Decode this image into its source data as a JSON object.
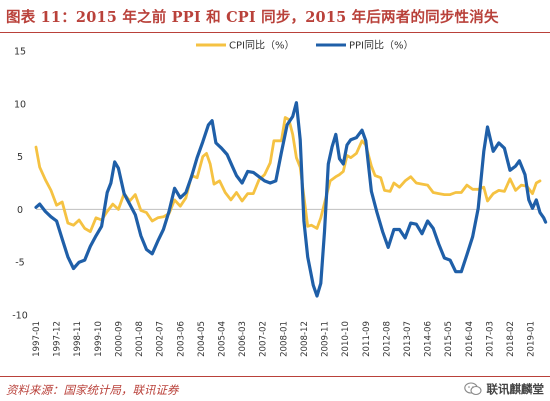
{
  "title": "图表 11：2015 年之前 PPI 和 CPI 同步，2015 年后两者的同步性消失",
  "source": "资料来源：国家统计局，联讯证券",
  "watermark": {
    "text": "联讯麒麟堂",
    "icon": "wechat-icon"
  },
  "chart_data": {
    "type": "line",
    "ylim": [
      -10,
      15
    ],
    "yticks": [
      -10,
      -5,
      0,
      5,
      10,
      15
    ],
    "grid": false,
    "legend_position": "top-center",
    "x_range": [
      "1997-01",
      "2019-06"
    ],
    "x_tick_labels": [
      "1997-01",
      "1997-12",
      "1998-11",
      "1999-10",
      "2000-09",
      "2001-08",
      "2002-07",
      "2003-06",
      "2004-05",
      "2005-04",
      "2006-03",
      "2007-02",
      "2008-01",
      "2008-12",
      "2009-11",
      "2010-10",
      "2011-09",
      "2012-08",
      "2013-07",
      "2014-06",
      "2015-05",
      "2016-04",
      "2017-03",
      "2018-02",
      "2019-01"
    ],
    "series": [
      {
        "name": "CPI同比（%）",
        "color": "#f5c242",
        "points": [
          [
            "1997-01",
            5.9
          ],
          [
            "1997-03",
            4.0
          ],
          [
            "1997-06",
            2.8
          ],
          [
            "1997-09",
            1.8
          ],
          [
            "1997-12",
            0.4
          ],
          [
            "1998-03",
            0.7
          ],
          [
            "1998-06",
            -1.3
          ],
          [
            "1998-09",
            -1.5
          ],
          [
            "1998-12",
            -1.0
          ],
          [
            "1999-03",
            -1.8
          ],
          [
            "1999-06",
            -2.1
          ],
          [
            "1999-09",
            -0.8
          ],
          [
            "1999-12",
            -1.0
          ],
          [
            "2000-03",
            -0.2
          ],
          [
            "2000-06",
            0.5
          ],
          [
            "2000-09",
            0.0
          ],
          [
            "2000-12",
            1.5
          ],
          [
            "2001-03",
            0.8
          ],
          [
            "2001-06",
            1.4
          ],
          [
            "2001-09",
            -0.1
          ],
          [
            "2001-12",
            -0.3
          ],
          [
            "2002-03",
            -1.1
          ],
          [
            "2002-06",
            -0.8
          ],
          [
            "2002-09",
            -0.7
          ],
          [
            "2002-12",
            -0.4
          ],
          [
            "2003-03",
            0.9
          ],
          [
            "2003-06",
            0.3
          ],
          [
            "2003-09",
            1.1
          ],
          [
            "2003-12",
            3.2
          ],
          [
            "2004-03",
            3.0
          ],
          [
            "2004-06",
            5.0
          ],
          [
            "2004-08",
            5.3
          ],
          [
            "2004-10",
            4.3
          ],
          [
            "2004-12",
            2.4
          ],
          [
            "2005-03",
            2.7
          ],
          [
            "2005-06",
            1.6
          ],
          [
            "2005-09",
            0.9
          ],
          [
            "2005-12",
            1.6
          ],
          [
            "2006-03",
            0.8
          ],
          [
            "2006-06",
            1.5
          ],
          [
            "2006-09",
            1.5
          ],
          [
            "2006-12",
            2.8
          ],
          [
            "2007-03",
            3.3
          ],
          [
            "2007-06",
            4.4
          ],
          [
            "2007-08",
            6.5
          ],
          [
            "2007-10",
            6.5
          ],
          [
            "2007-12",
            6.5
          ],
          [
            "2008-02",
            8.7
          ],
          [
            "2008-04",
            8.5
          ],
          [
            "2008-06",
            7.1
          ],
          [
            "2008-08",
            4.9
          ],
          [
            "2008-10",
            4.0
          ],
          [
            "2008-12",
            1.2
          ],
          [
            "2009-02",
            -1.6
          ],
          [
            "2009-04",
            -1.5
          ],
          [
            "2009-07",
            -1.8
          ],
          [
            "2009-09",
            -0.8
          ],
          [
            "2009-11",
            0.6
          ],
          [
            "2010-02",
            2.7
          ],
          [
            "2010-05",
            3.1
          ],
          [
            "2010-07",
            3.3
          ],
          [
            "2010-09",
            3.6
          ],
          [
            "2010-11",
            5.1
          ],
          [
            "2011-01",
            4.9
          ],
          [
            "2011-04",
            5.3
          ],
          [
            "2011-07",
            6.5
          ],
          [
            "2011-09",
            6.1
          ],
          [
            "2011-12",
            4.1
          ],
          [
            "2012-02",
            3.2
          ],
          [
            "2012-05",
            3.0
          ],
          [
            "2012-07",
            1.8
          ],
          [
            "2012-10",
            1.7
          ],
          [
            "2012-12",
            2.5
          ],
          [
            "2013-03",
            2.1
          ],
          [
            "2013-06",
            2.7
          ],
          [
            "2013-09",
            3.1
          ],
          [
            "2013-12",
            2.5
          ],
          [
            "2014-03",
            2.4
          ],
          [
            "2014-06",
            2.3
          ],
          [
            "2014-09",
            1.6
          ],
          [
            "2014-12",
            1.5
          ],
          [
            "2015-03",
            1.4
          ],
          [
            "2015-06",
            1.4
          ],
          [
            "2015-09",
            1.6
          ],
          [
            "2015-12",
            1.6
          ],
          [
            "2016-03",
            2.3
          ],
          [
            "2016-06",
            1.9
          ],
          [
            "2016-09",
            1.9
          ],
          [
            "2016-12",
            2.1
          ],
          [
            "2017-02",
            0.8
          ],
          [
            "2017-05",
            1.5
          ],
          [
            "2017-08",
            1.8
          ],
          [
            "2017-11",
            1.7
          ],
          [
            "2018-02",
            2.9
          ],
          [
            "2018-05",
            1.8
          ],
          [
            "2018-08",
            2.3
          ],
          [
            "2018-11",
            2.2
          ],
          [
            "2019-02",
            1.5
          ],
          [
            "2019-04",
            2.5
          ],
          [
            "2019-06",
            2.7
          ]
        ]
      },
      {
        "name": "PPI同比（%）",
        "color": "#1f5fa8",
        "points": [
          [
            "1997-01",
            0.2
          ],
          [
            "1997-03",
            0.5
          ],
          [
            "1997-06",
            -0.2
          ],
          [
            "1997-09",
            -0.7
          ],
          [
            "1997-12",
            -1.1
          ],
          [
            "1998-03",
            -2.8
          ],
          [
            "1998-06",
            -4.5
          ],
          [
            "1998-09",
            -5.6
          ],
          [
            "1998-12",
            -5.0
          ],
          [
            "1999-03",
            -4.8
          ],
          [
            "1999-06",
            -3.5
          ],
          [
            "1999-09",
            -2.5
          ],
          [
            "1999-12",
            -1.6
          ],
          [
            "2000-03",
            1.6
          ],
          [
            "2000-05",
            2.5
          ],
          [
            "2000-07",
            4.5
          ],
          [
            "2000-09",
            3.9
          ],
          [
            "2000-12",
            1.5
          ],
          [
            "2001-03",
            0.5
          ],
          [
            "2001-06",
            -0.5
          ],
          [
            "2001-09",
            -2.5
          ],
          [
            "2001-12",
            -3.8
          ],
          [
            "2002-03",
            -4.2
          ],
          [
            "2002-06",
            -3.0
          ],
          [
            "2002-09",
            -1.9
          ],
          [
            "2002-12",
            -0.2
          ],
          [
            "2003-03",
            2.0
          ],
          [
            "2003-06",
            1.1
          ],
          [
            "2003-09",
            1.6
          ],
          [
            "2003-12",
            3.1
          ],
          [
            "2004-03",
            4.9
          ],
          [
            "2004-06",
            6.4
          ],
          [
            "2004-09",
            8.0
          ],
          [
            "2004-11",
            8.4
          ],
          [
            "2005-01",
            6.3
          ],
          [
            "2005-04",
            5.8
          ],
          [
            "2005-07",
            5.2
          ],
          [
            "2005-10",
            4.0
          ],
          [
            "2005-12",
            3.2
          ],
          [
            "2006-03",
            2.5
          ],
          [
            "2006-06",
            3.6
          ],
          [
            "2006-09",
            3.5
          ],
          [
            "2006-12",
            3.1
          ],
          [
            "2007-03",
            2.7
          ],
          [
            "2007-06",
            2.5
          ],
          [
            "2007-09",
            2.7
          ],
          [
            "2007-12",
            5.4
          ],
          [
            "2008-03",
            8.0
          ],
          [
            "2008-06",
            8.8
          ],
          [
            "2008-08",
            10.1
          ],
          [
            "2008-10",
            6.6
          ],
          [
            "2008-12",
            -1.1
          ],
          [
            "2009-02",
            -4.5
          ],
          [
            "2009-05",
            -7.2
          ],
          [
            "2009-07",
            -8.2
          ],
          [
            "2009-09",
            -7.0
          ],
          [
            "2009-11",
            -2.1
          ],
          [
            "2010-01",
            4.3
          ],
          [
            "2010-03",
            5.9
          ],
          [
            "2010-05",
            7.1
          ],
          [
            "2010-07",
            4.8
          ],
          [
            "2010-09",
            4.3
          ],
          [
            "2010-11",
            6.1
          ],
          [
            "2011-01",
            6.6
          ],
          [
            "2011-04",
            6.8
          ],
          [
            "2011-07",
            7.5
          ],
          [
            "2011-09",
            6.5
          ],
          [
            "2011-12",
            1.7
          ],
          [
            "2012-03",
            -0.3
          ],
          [
            "2012-06",
            -2.1
          ],
          [
            "2012-09",
            -3.6
          ],
          [
            "2012-12",
            -1.9
          ],
          [
            "2013-03",
            -1.9
          ],
          [
            "2013-06",
            -2.7
          ],
          [
            "2013-09",
            -1.3
          ],
          [
            "2013-12",
            -1.4
          ],
          [
            "2014-03",
            -2.3
          ],
          [
            "2014-06",
            -1.1
          ],
          [
            "2014-09",
            -1.8
          ],
          [
            "2014-12",
            -3.3
          ],
          [
            "2015-03",
            -4.6
          ],
          [
            "2015-06",
            -4.8
          ],
          [
            "2015-09",
            -5.9
          ],
          [
            "2015-12",
            -5.9
          ],
          [
            "2016-03",
            -4.3
          ],
          [
            "2016-06",
            -2.6
          ],
          [
            "2016-09",
            0.1
          ],
          [
            "2016-12",
            5.5
          ],
          [
            "2017-02",
            7.8
          ],
          [
            "2017-05",
            5.5
          ],
          [
            "2017-08",
            6.3
          ],
          [
            "2017-11",
            5.8
          ],
          [
            "2018-02",
            3.7
          ],
          [
            "2018-05",
            4.1
          ],
          [
            "2018-07",
            4.6
          ],
          [
            "2018-10",
            3.3
          ],
          [
            "2018-12",
            0.9
          ],
          [
            "2019-02",
            0.1
          ],
          [
            "2019-04",
            0.9
          ],
          [
            "2019-06",
            -0.3
          ],
          [
            "2019-08",
            -0.8
          ],
          [
            "2019-09",
            -1.2
          ]
        ]
      }
    ]
  }
}
